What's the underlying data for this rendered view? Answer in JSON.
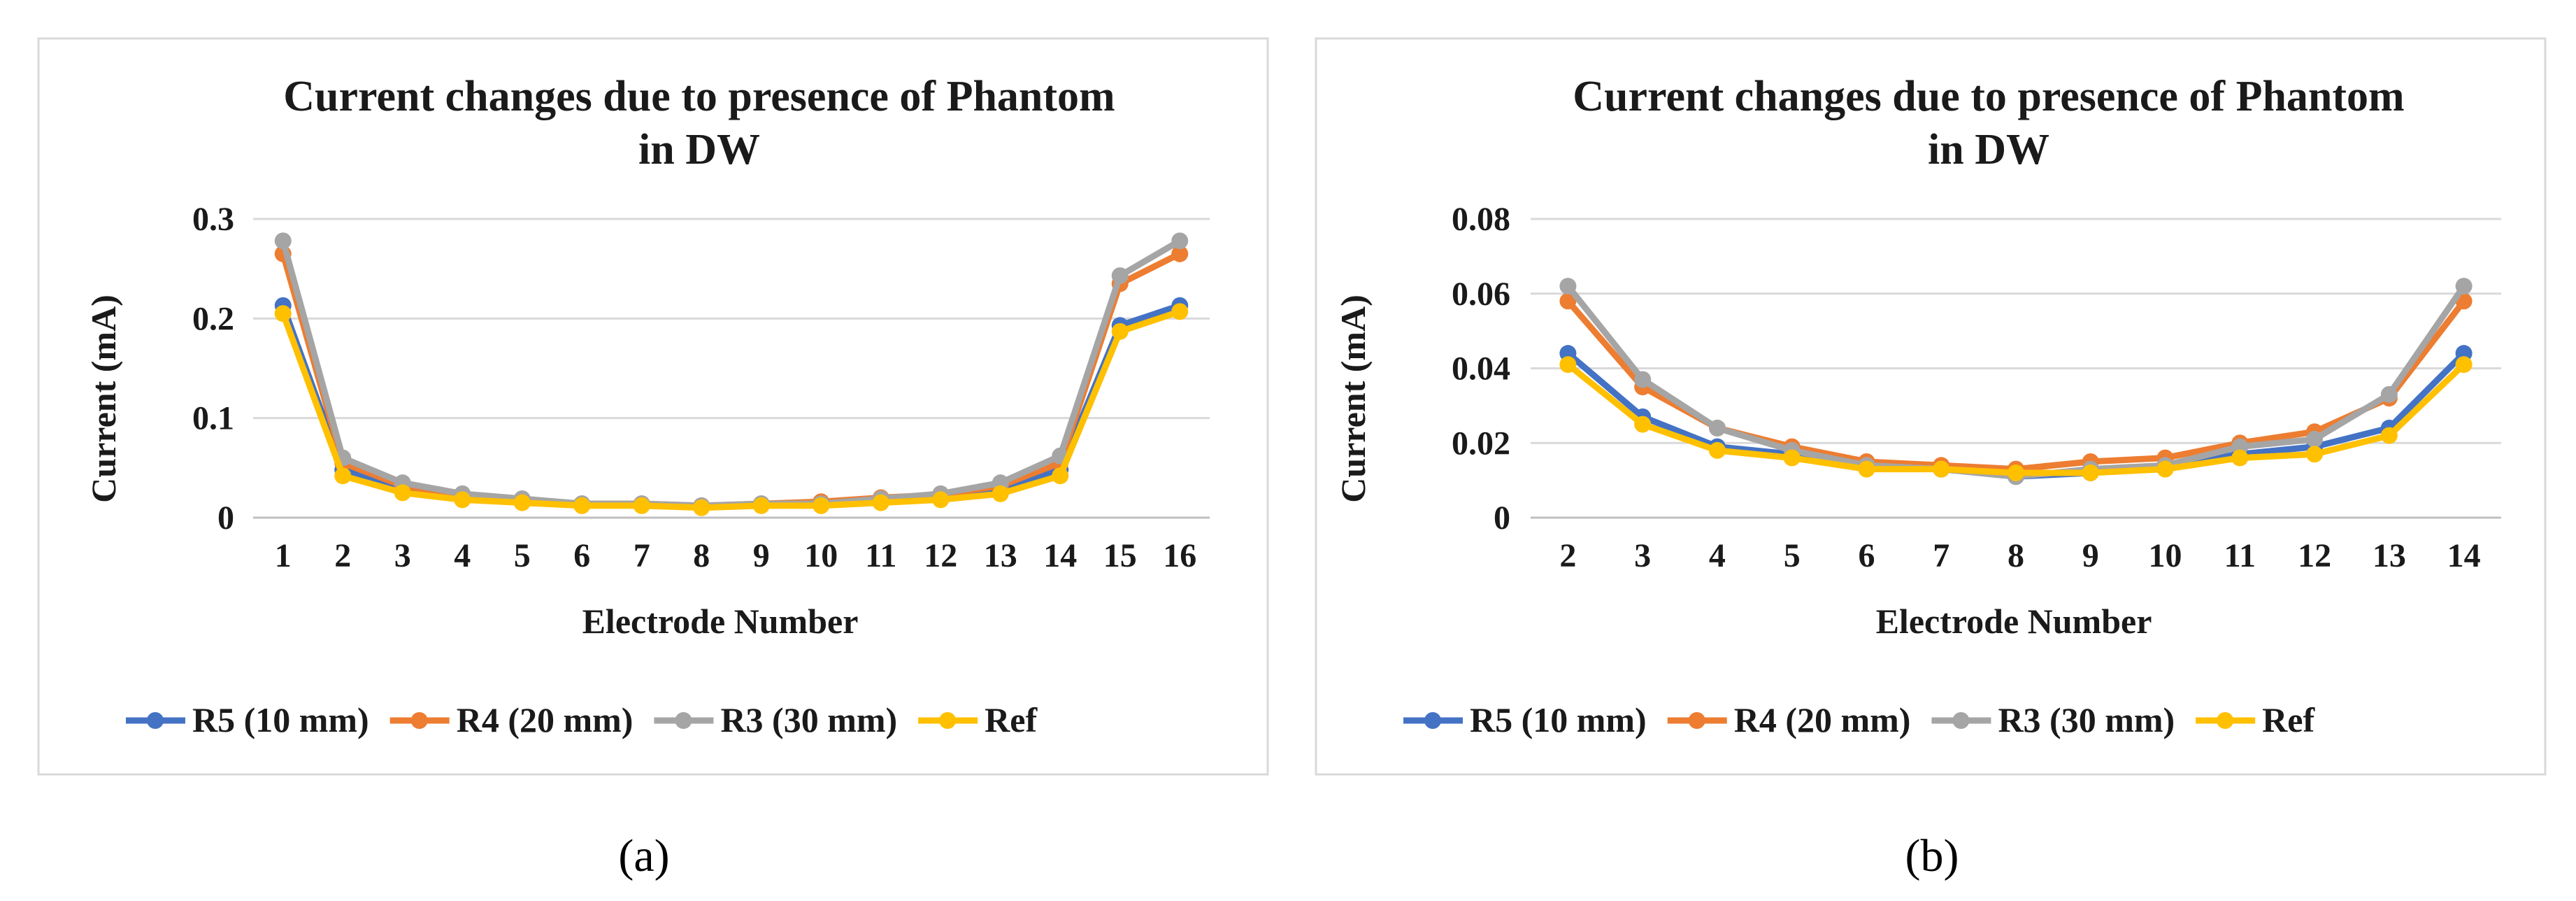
{
  "charts": [
    {
      "id": "a",
      "caption": "(a)",
      "chart_data": {
        "type": "line",
        "title_lines": [
          "Current  changes  due to presence  of Phantom",
          "in DW"
        ],
        "xlabel": "Electrode Number",
        "ylabel": "Current (mA)",
        "categories": [
          "1",
          "2",
          "3",
          "4",
          "5",
          "6",
          "7",
          "8",
          "9",
          "10",
          "11",
          "12",
          "13",
          "14",
          "15",
          "16"
        ],
        "ylim": [
          0,
          0.3
        ],
        "yticks": [
          0,
          0.1,
          0.2,
          0.3
        ],
        "ytick_labels": [
          "0",
          "0.1",
          "0.2",
          "0.3"
        ],
        "grid": true,
        "legend": "bottom",
        "series": [
          {
            "name": "R5 (10 mm)",
            "color": "#4472C4",
            "values": [
              0.213,
              0.048,
              0.028,
              0.02,
              0.017,
              0.013,
              0.013,
              0.011,
              0.013,
              0.013,
              0.017,
              0.02,
              0.028,
              0.048,
              0.193,
              0.213
            ]
          },
          {
            "name": "R4 (20 mm)",
            "color": "#ED7D31",
            "values": [
              0.265,
              0.055,
              0.032,
              0.022,
              0.018,
              0.014,
              0.014,
              0.012,
              0.014,
              0.016,
              0.02,
              0.023,
              0.032,
              0.055,
              0.235,
              0.265
            ]
          },
          {
            "name": "R3 (30 mm)",
            "color": "#A5A5A5",
            "values": [
              0.278,
              0.06,
              0.035,
              0.024,
              0.019,
              0.014,
              0.014,
              0.012,
              0.014,
              0.014,
              0.019,
              0.024,
              0.035,
              0.062,
              0.243,
              0.278
            ]
          },
          {
            "name": "Ref",
            "color": "#FFC000",
            "values": [
              0.205,
              0.042,
              0.025,
              0.018,
              0.015,
              0.012,
              0.012,
              0.01,
              0.012,
              0.012,
              0.015,
              0.018,
              0.024,
              0.042,
              0.187,
              0.207
            ]
          }
        ]
      }
    },
    {
      "id": "b",
      "caption": "(b)",
      "chart_data": {
        "type": "line",
        "title_lines": [
          "Current  changes  due to presence  of Phantom",
          "in DW"
        ],
        "xlabel": "Electrode Number",
        "ylabel": "Current (mA)",
        "categories": [
          "2",
          "3",
          "4",
          "5",
          "6",
          "7",
          "8",
          "9",
          "10",
          "11",
          "12",
          "13",
          "14"
        ],
        "ylim": [
          0,
          0.08
        ],
        "yticks": [
          0,
          0.02,
          0.04,
          0.06,
          0.08
        ],
        "ytick_labels": [
          "0",
          "0.02",
          "0.04",
          "0.06",
          "0.08"
        ],
        "grid": true,
        "legend": "bottom",
        "series": [
          {
            "name": "R5 (10 mm)",
            "color": "#4472C4",
            "values": [
              0.044,
              0.027,
              0.019,
              0.017,
              0.014,
              0.013,
              0.011,
              0.012,
              0.014,
              0.017,
              0.019,
              0.024,
              0.044
            ]
          },
          {
            "name": "R4 (20 mm)",
            "color": "#ED7D31",
            "values": [
              0.058,
              0.035,
              0.024,
              0.019,
              0.015,
              0.014,
              0.013,
              0.015,
              0.016,
              0.02,
              0.023,
              0.032,
              0.058
            ]
          },
          {
            "name": "R3 (30 mm)",
            "color": "#A5A5A5",
            "values": [
              0.062,
              0.037,
              0.024,
              0.018,
              0.014,
              0.013,
              0.011,
              0.013,
              0.014,
              0.019,
              0.021,
              0.033,
              0.062
            ]
          },
          {
            "name": "Ref",
            "color": "#FFC000",
            "values": [
              0.041,
              0.025,
              0.018,
              0.016,
              0.013,
              0.013,
              0.012,
              0.012,
              0.013,
              0.016,
              0.017,
              0.022,
              0.041
            ]
          }
        ]
      }
    }
  ]
}
